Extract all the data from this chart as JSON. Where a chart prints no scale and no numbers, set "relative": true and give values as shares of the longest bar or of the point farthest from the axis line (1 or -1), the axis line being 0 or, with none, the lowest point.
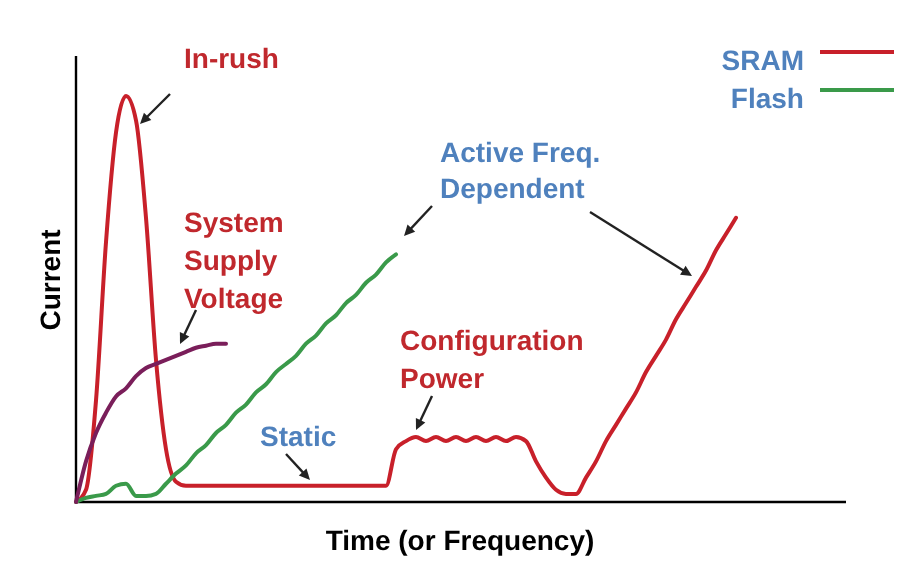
{
  "chart_data": {
    "type": "line",
    "relative": true,
    "xlabel": "Time (or Frequency)",
    "ylabel": "Current",
    "legend": "top right",
    "categories": [
      null,
      null,
      null,
      null,
      null,
      null,
      null,
      null,
      null,
      null,
      null,
      null,
      null,
      null,
      null,
      null,
      null,
      null,
      null,
      null,
      null,
      null,
      null,
      null,
      null,
      null,
      null,
      null,
      null,
      null,
      null,
      null,
      null,
      null,
      null,
      null,
      null,
      null,
      null,
      null,
      null,
      null,
      null,
      null,
      null,
      null,
      null,
      null,
      null,
      null,
      null,
      null,
      null,
      null,
      null,
      null,
      null,
      null,
      null,
      null,
      null,
      null,
      null,
      null,
      null,
      null,
      null
    ],
    "series": [
      {
        "name": "SRAM",
        "color": "#c8202a",
        "values": [
          0,
          0.03,
          0.25,
          0.64,
          0.91,
          1,
          0.94,
          0.7,
          0.35,
          0.13,
          0.05,
          0.04,
          0.04,
          0.04,
          0.04,
          0.04,
          0.04,
          0.04,
          0.04,
          0.04,
          0.04,
          0.04,
          0.04,
          0.04,
          0.04,
          0.04,
          0.04,
          0.04,
          0.04,
          0.04,
          0.04,
          0.04,
          0.13,
          0.15,
          0.16,
          0.15,
          0.16,
          0.15,
          0.16,
          0.15,
          0.16,
          0.15,
          0.16,
          0.15,
          0.16,
          0.15,
          0.1,
          0.06,
          0.03,
          0.02,
          0.02,
          0.06,
          0.1,
          0.15,
          0.19,
          0.23,
          0.27,
          0.32,
          0.36,
          0.4,
          0.45,
          0.49,
          0.53,
          0.57,
          0.62,
          0.66,
          0.7
        ]
      },
      {
        "name": "Flash",
        "color": "#3a9a4a",
        "values": [
          0,
          0.01,
          0.015,
          0.02,
          0.04,
          0.045,
          0.015,
          0.015,
          0.02,
          0.045,
          0.07,
          0.09,
          0.12,
          0.14,
          0.17,
          0.19,
          0.22,
          0.24,
          0.27,
          0.29,
          0.32,
          0.34,
          0.36,
          0.39,
          0.41,
          0.44,
          0.46,
          0.49,
          0.51,
          0.54,
          0.56,
          0.59,
          0.61,
          null,
          null,
          null,
          null,
          null,
          null,
          null,
          null,
          null,
          null,
          null,
          null,
          null,
          null,
          null,
          null,
          null,
          null,
          null,
          null,
          null,
          null,
          null,
          null,
          null,
          null,
          null,
          null,
          null,
          null,
          null,
          null,
          null,
          null
        ]
      },
      {
        "color": "#7a1e5a",
        "values": [
          0,
          0.1,
          0.17,
          0.22,
          0.26,
          0.28,
          0.31,
          0.33,
          0.34,
          0.35,
          0.36,
          0.37,
          0.38,
          0.385,
          0.39,
          0.39,
          null,
          null,
          null,
          null,
          null,
          null,
          null,
          null,
          null,
          null,
          null,
          null,
          null,
          null,
          null,
          null,
          null,
          null,
          null,
          null,
          null,
          null,
          null,
          null,
          null,
          null,
          null,
          null,
          null,
          null,
          null,
          null,
          null,
          null,
          null,
          null,
          null,
          null,
          null,
          null,
          null,
          null,
          null,
          null,
          null,
          null,
          null,
          null,
          null,
          null,
          null
        ]
      }
    ],
    "annotations": [
      "In-rush",
      "System Supply Voltage",
      "Active Freq. Dependent",
      "Configuration Power",
      "Static"
    ]
  }
}
